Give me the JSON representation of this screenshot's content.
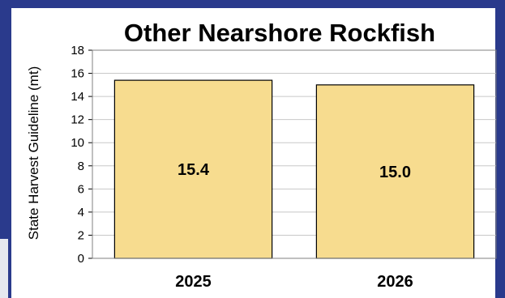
{
  "chart_data": {
    "type": "bar",
    "title": "Other Nearshore Rockfish",
    "ylabel": "State Harvest Guideline (mt)",
    "xlabel": "",
    "categories": [
      "2025",
      "2026"
    ],
    "values": [
      15.4,
      15.0
    ],
    "data_labels": [
      "15.4",
      "15.0"
    ],
    "ylim": [
      0,
      18
    ],
    "yticks": [
      0,
      2,
      4,
      6,
      8,
      10,
      12,
      14,
      16,
      18
    ],
    "grid": true,
    "bar_color": "#f7dc8f",
    "bar_edge_color": "#000000"
  },
  "colors": {
    "frame": "#2a3a8c",
    "panel": "#ffffff",
    "gridline": "#c8c8c8"
  }
}
